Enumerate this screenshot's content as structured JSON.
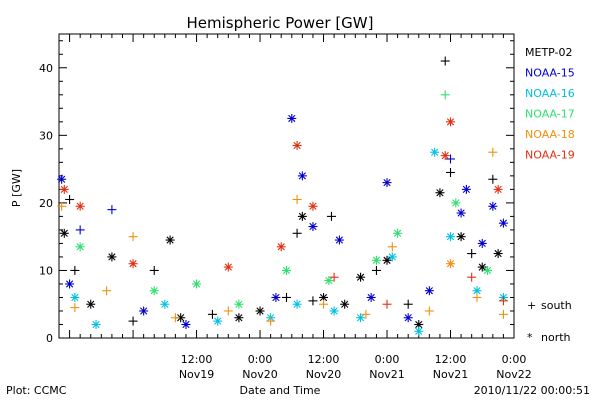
{
  "chart_data": {
    "type": "scatter",
    "title": "Hemispheric Power [GW]",
    "ylabel": "P [GW]",
    "xlabel": "Date and Time",
    "ylim": [
      0,
      45
    ],
    "yticks": [
      0,
      10,
      20,
      30,
      40
    ],
    "xlim": [
      "2010-11-18T10:00",
      "2010-11-22T00:00"
    ],
    "xticks": [
      {
        "time": "12:00",
        "date": "Nov19"
      },
      {
        "time": "0:00",
        "date": "Nov20"
      },
      {
        "time": "12:00",
        "date": "Nov20"
      },
      {
        "time": "0:00",
        "date": "Nov21"
      },
      {
        "time": "12:00",
        "date": "Nov21"
      },
      {
        "time": "0:00",
        "date": "Nov22"
      }
    ],
    "hemisphere_markers": [
      {
        "symbol": "+",
        "label": "south"
      },
      {
        "symbol": "*",
        "label": "north"
      }
    ],
    "footer_left": "Plot: CCMC",
    "footer_right": "2010/11/22 00:00:51",
    "series": [
      {
        "name": "METP-02",
        "color": "#000000",
        "points": [
          {
            "x": "2010-11-18T11:00",
            "y": 15.5,
            "hemi": "north"
          },
          {
            "x": "2010-11-18T12:00",
            "y": 20.5,
            "hemi": "south"
          },
          {
            "x": "2010-11-18T13:00",
            "y": 10,
            "hemi": "south"
          },
          {
            "x": "2010-11-18T16:00",
            "y": 5,
            "hemi": "north"
          },
          {
            "x": "2010-11-18T20:00",
            "y": 12,
            "hemi": "north"
          },
          {
            "x": "2010-11-19T00:00",
            "y": 2.5,
            "hemi": "south"
          },
          {
            "x": "2010-11-19T04:00",
            "y": 10,
            "hemi": "south"
          },
          {
            "x": "2010-11-19T07:00",
            "y": 14.5,
            "hemi": "north"
          },
          {
            "x": "2010-11-19T09:00",
            "y": 3,
            "hemi": "north"
          },
          {
            "x": "2010-11-19T15:00",
            "y": 3.5,
            "hemi": "south"
          },
          {
            "x": "2010-11-19T20:00",
            "y": 3,
            "hemi": "north"
          },
          {
            "x": "2010-11-20T00:00",
            "y": 4,
            "hemi": "north"
          },
          {
            "x": "2010-11-20T05:00",
            "y": 6,
            "hemi": "south"
          },
          {
            "x": "2010-11-20T07:00",
            "y": 15.5,
            "hemi": "south"
          },
          {
            "x": "2010-11-20T08:00",
            "y": 18,
            "hemi": "north"
          },
          {
            "x": "2010-11-20T10:00",
            "y": 5.5,
            "hemi": "south"
          },
          {
            "x": "2010-11-20T12:00",
            "y": 6,
            "hemi": "north"
          },
          {
            "x": "2010-11-20T13:30",
            "y": 18,
            "hemi": "south"
          },
          {
            "x": "2010-11-20T16:00",
            "y": 5,
            "hemi": "north"
          },
          {
            "x": "2010-11-20T19:00",
            "y": 9,
            "hemi": "north"
          },
          {
            "x": "2010-11-20T22:00",
            "y": 10,
            "hemi": "south"
          },
          {
            "x": "2010-11-21T00:00",
            "y": 11.5,
            "hemi": "north"
          },
          {
            "x": "2010-11-21T04:00",
            "y": 5,
            "hemi": "south"
          },
          {
            "x": "2010-11-21T06:00",
            "y": 2,
            "hemi": "north"
          },
          {
            "x": "2010-11-21T10:00",
            "y": 21.5,
            "hemi": "north"
          },
          {
            "x": "2010-11-21T11:00",
            "y": 41,
            "hemi": "south"
          },
          {
            "x": "2010-11-21T12:00",
            "y": 24.5,
            "hemi": "south"
          },
          {
            "x": "2010-11-21T14:00",
            "y": 15,
            "hemi": "north"
          },
          {
            "x": "2010-11-21T16:00",
            "y": 12.5,
            "hemi": "south"
          },
          {
            "x": "2010-11-21T18:00",
            "y": 10.5,
            "hemi": "north"
          },
          {
            "x": "2010-11-21T20:00",
            "y": 23.5,
            "hemi": "south"
          },
          {
            "x": "2010-11-21T21:00",
            "y": 12.5,
            "hemi": "north"
          }
        ]
      },
      {
        "name": "NOAA-15",
        "color": "#0000d0",
        "points": [
          {
            "x": "2010-11-18T10:30",
            "y": 23.5,
            "hemi": "north"
          },
          {
            "x": "2010-11-18T12:00",
            "y": 8,
            "hemi": "north"
          },
          {
            "x": "2010-11-18T14:00",
            "y": 16,
            "hemi": "south"
          },
          {
            "x": "2010-11-18T20:00",
            "y": 19,
            "hemi": "south"
          },
          {
            "x": "2010-11-19T02:00",
            "y": 4,
            "hemi": "north"
          },
          {
            "x": "2010-11-19T10:00",
            "y": 2,
            "hemi": "north"
          },
          {
            "x": "2010-11-20T03:00",
            "y": 6,
            "hemi": "north"
          },
          {
            "x": "2010-11-20T06:00",
            "y": 32.5,
            "hemi": "north"
          },
          {
            "x": "2010-11-20T08:00",
            "y": 24,
            "hemi": "north"
          },
          {
            "x": "2010-11-20T10:00",
            "y": 16.5,
            "hemi": "north"
          },
          {
            "x": "2010-11-20T15:00",
            "y": 14.5,
            "hemi": "north"
          },
          {
            "x": "2010-11-20T21:00",
            "y": 6,
            "hemi": "north"
          },
          {
            "x": "2010-11-21T00:00",
            "y": 23,
            "hemi": "north"
          },
          {
            "x": "2010-11-21T04:00",
            "y": 3,
            "hemi": "north"
          },
          {
            "x": "2010-11-21T08:00",
            "y": 7,
            "hemi": "north"
          },
          {
            "x": "2010-11-21T12:00",
            "y": 26.5,
            "hemi": "south"
          },
          {
            "x": "2010-11-21T14:00",
            "y": 18.5,
            "hemi": "north"
          },
          {
            "x": "2010-11-21T15:00",
            "y": 22,
            "hemi": "north"
          },
          {
            "x": "2010-11-21T18:00",
            "y": 14,
            "hemi": "north"
          },
          {
            "x": "2010-11-21T20:00",
            "y": 19.5,
            "hemi": "north"
          },
          {
            "x": "2010-11-21T22:00",
            "y": 17,
            "hemi": "north"
          }
        ]
      },
      {
        "name": "NOAA-16",
        "color": "#00c0e0",
        "points": [
          {
            "x": "2010-11-18T13:00",
            "y": 6,
            "hemi": "north"
          },
          {
            "x": "2010-11-18T17:00",
            "y": 2,
            "hemi": "north"
          },
          {
            "x": "2010-11-19T06:00",
            "y": 5,
            "hemi": "north"
          },
          {
            "x": "2010-11-19T16:00",
            "y": 2.5,
            "hemi": "north"
          },
          {
            "x": "2010-11-20T02:00",
            "y": 3,
            "hemi": "north"
          },
          {
            "x": "2010-11-20T07:00",
            "y": 5,
            "hemi": "north"
          },
          {
            "x": "2010-11-20T14:00",
            "y": 4,
            "hemi": "north"
          },
          {
            "x": "2010-11-20T19:00",
            "y": 3,
            "hemi": "north"
          },
          {
            "x": "2010-11-21T01:00",
            "y": 12,
            "hemi": "north"
          },
          {
            "x": "2010-11-21T06:00",
            "y": 1,
            "hemi": "north"
          },
          {
            "x": "2010-11-21T09:00",
            "y": 27.5,
            "hemi": "north"
          },
          {
            "x": "2010-11-21T12:00",
            "y": 15,
            "hemi": "north"
          },
          {
            "x": "2010-11-21T17:00",
            "y": 7,
            "hemi": "north"
          },
          {
            "x": "2010-11-21T22:00",
            "y": 6,
            "hemi": "north"
          }
        ]
      },
      {
        "name": "NOAA-17",
        "color": "#30e070",
        "points": [
          {
            "x": "2010-11-18T14:00",
            "y": 13.5,
            "hemi": "north"
          },
          {
            "x": "2010-11-19T04:00",
            "y": 7,
            "hemi": "north"
          },
          {
            "x": "2010-11-19T12:00",
            "y": 8,
            "hemi": "north"
          },
          {
            "x": "2010-11-19T20:00",
            "y": 5,
            "hemi": "north"
          },
          {
            "x": "2010-11-20T05:00",
            "y": 10,
            "hemi": "north"
          },
          {
            "x": "2010-11-20T13:00",
            "y": 8.5,
            "hemi": "north"
          },
          {
            "x": "2010-11-20T22:00",
            "y": 11.5,
            "hemi": "north"
          },
          {
            "x": "2010-11-21T02:00",
            "y": 15.5,
            "hemi": "north"
          },
          {
            "x": "2010-11-21T11:00",
            "y": 36,
            "hemi": "south"
          },
          {
            "x": "2010-11-21T13:00",
            "y": 20,
            "hemi": "north"
          },
          {
            "x": "2010-11-21T19:00",
            "y": 10,
            "hemi": "north"
          }
        ]
      },
      {
        "name": "NOAA-18",
        "color": "#f09010",
        "points": [
          {
            "x": "2010-11-18T10:30",
            "y": 19.5,
            "hemi": "south"
          },
          {
            "x": "2010-11-18T13:00",
            "y": 4.5,
            "hemi": "south"
          },
          {
            "x": "2010-11-18T19:00",
            "y": 7,
            "hemi": "south"
          },
          {
            "x": "2010-11-19T00:00",
            "y": 15,
            "hemi": "south"
          },
          {
            "x": "2010-11-19T08:00",
            "y": 3,
            "hemi": "south"
          },
          {
            "x": "2010-11-19T18:00",
            "y": 4,
            "hemi": "south"
          },
          {
            "x": "2010-11-20T02:00",
            "y": 2.5,
            "hemi": "south"
          },
          {
            "x": "2010-11-20T07:00",
            "y": 20.5,
            "hemi": "south"
          },
          {
            "x": "2010-11-20T12:00",
            "y": 5,
            "hemi": "south"
          },
          {
            "x": "2010-11-20T20:00",
            "y": 3.5,
            "hemi": "south"
          },
          {
            "x": "2010-11-21T01:00",
            "y": 13.5,
            "hemi": "south"
          },
          {
            "x": "2010-11-21T08:00",
            "y": 4,
            "hemi": "south"
          },
          {
            "x": "2010-11-21T12:00",
            "y": 11,
            "hemi": "north"
          },
          {
            "x": "2010-11-21T17:00",
            "y": 6,
            "hemi": "south"
          },
          {
            "x": "2010-11-21T20:00",
            "y": 27.5,
            "hemi": "south"
          },
          {
            "x": "2010-11-21T22:00",
            "y": 3.5,
            "hemi": "south"
          }
        ]
      },
      {
        "name": "NOAA-19",
        "color": "#e03010",
        "points": [
          {
            "x": "2010-11-18T11:00",
            "y": 22,
            "hemi": "north"
          },
          {
            "x": "2010-11-18T14:00",
            "y": 19.5,
            "hemi": "north"
          },
          {
            "x": "2010-11-19T00:00",
            "y": 11,
            "hemi": "north"
          },
          {
            "x": "2010-11-19T18:00",
            "y": 10.5,
            "hemi": "north"
          },
          {
            "x": "2010-11-20T04:00",
            "y": 13.5,
            "hemi": "north"
          },
          {
            "x": "2010-11-20T07:00",
            "y": 28.5,
            "hemi": "north"
          },
          {
            "x": "2010-11-20T10:00",
            "y": 19.5,
            "hemi": "north"
          },
          {
            "x": "2010-11-20T14:00",
            "y": 9,
            "hemi": "south"
          },
          {
            "x": "2010-11-21T00:00",
            "y": 5,
            "hemi": "south"
          },
          {
            "x": "2010-11-21T11:00",
            "y": 27,
            "hemi": "north"
          },
          {
            "x": "2010-11-21T12:00",
            "y": 32,
            "hemi": "north"
          },
          {
            "x": "2010-11-21T16:00",
            "y": 9,
            "hemi": "south"
          },
          {
            "x": "2010-11-21T21:00",
            "y": 22,
            "hemi": "north"
          },
          {
            "x": "2010-11-21T22:00",
            "y": 5.5,
            "hemi": "south"
          }
        ]
      }
    ]
  }
}
